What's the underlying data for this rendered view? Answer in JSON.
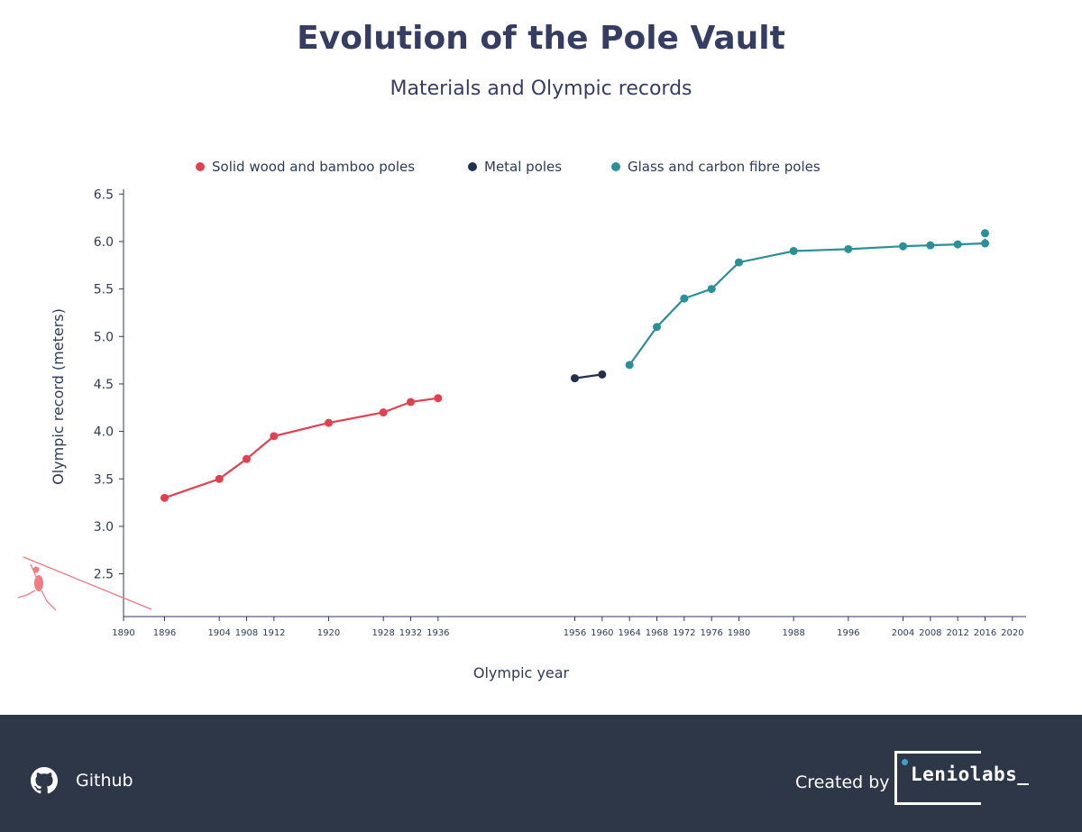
{
  "header": {
    "title": "Evolution of the Pole Vault",
    "subtitle": "Materials and Olympic records"
  },
  "chart_data": {
    "type": "line",
    "xlabel": "Olympic year",
    "ylabel": "Olympic record (meters)",
    "ylim": [
      2.05,
      6.55
    ],
    "xlim": [
      1890,
      2022
    ],
    "yticks": [
      "2.5",
      "3.0",
      "3.5",
      "4.0",
      "4.5",
      "5.0",
      "5.5",
      "6.0",
      "6.5"
    ],
    "xticks": [
      "1890",
      "1896",
      "1904",
      "1908",
      "1912",
      "1920",
      "1928",
      "1932",
      "1936",
      "1956",
      "1960",
      "1964",
      "1968",
      "1972",
      "1976",
      "1980",
      "1988",
      "1996",
      "2004",
      "2008",
      "2012",
      "2016",
      "2020"
    ],
    "legend_position": "top",
    "series": [
      {
        "name": "Solid wood and bamboo poles",
        "color": "#e0404f",
        "x": [
          1896,
          1904,
          1908,
          1912,
          1920,
          1928,
          1932,
          1936
        ],
        "y": [
          3.3,
          3.5,
          3.71,
          3.95,
          4.09,
          4.2,
          4.31,
          4.35
        ]
      },
      {
        "name": "Metal poles",
        "color": "#243050",
        "x": [
          1956,
          1960
        ],
        "y": [
          4.56,
          4.6
        ]
      },
      {
        "name": "Glass and carbon fibre poles",
        "color": "#2a9098",
        "x": [
          1964,
          1968,
          1972,
          1976,
          1980,
          1988,
          1996,
          2004,
          2008,
          2012,
          2016
        ],
        "y": [
          4.7,
          5.1,
          5.4,
          5.5,
          5.78,
          5.9,
          5.92,
          5.95,
          5.96,
          5.97,
          5.98
        ]
      }
    ],
    "extra_point": {
      "x": 2016,
      "y": 6.03,
      "color": "#2a9098"
    }
  },
  "footer": {
    "github_label": "Github",
    "credit_label": "Created by",
    "brand": "Leniolabs_",
    "github_icon": "github-icon"
  }
}
